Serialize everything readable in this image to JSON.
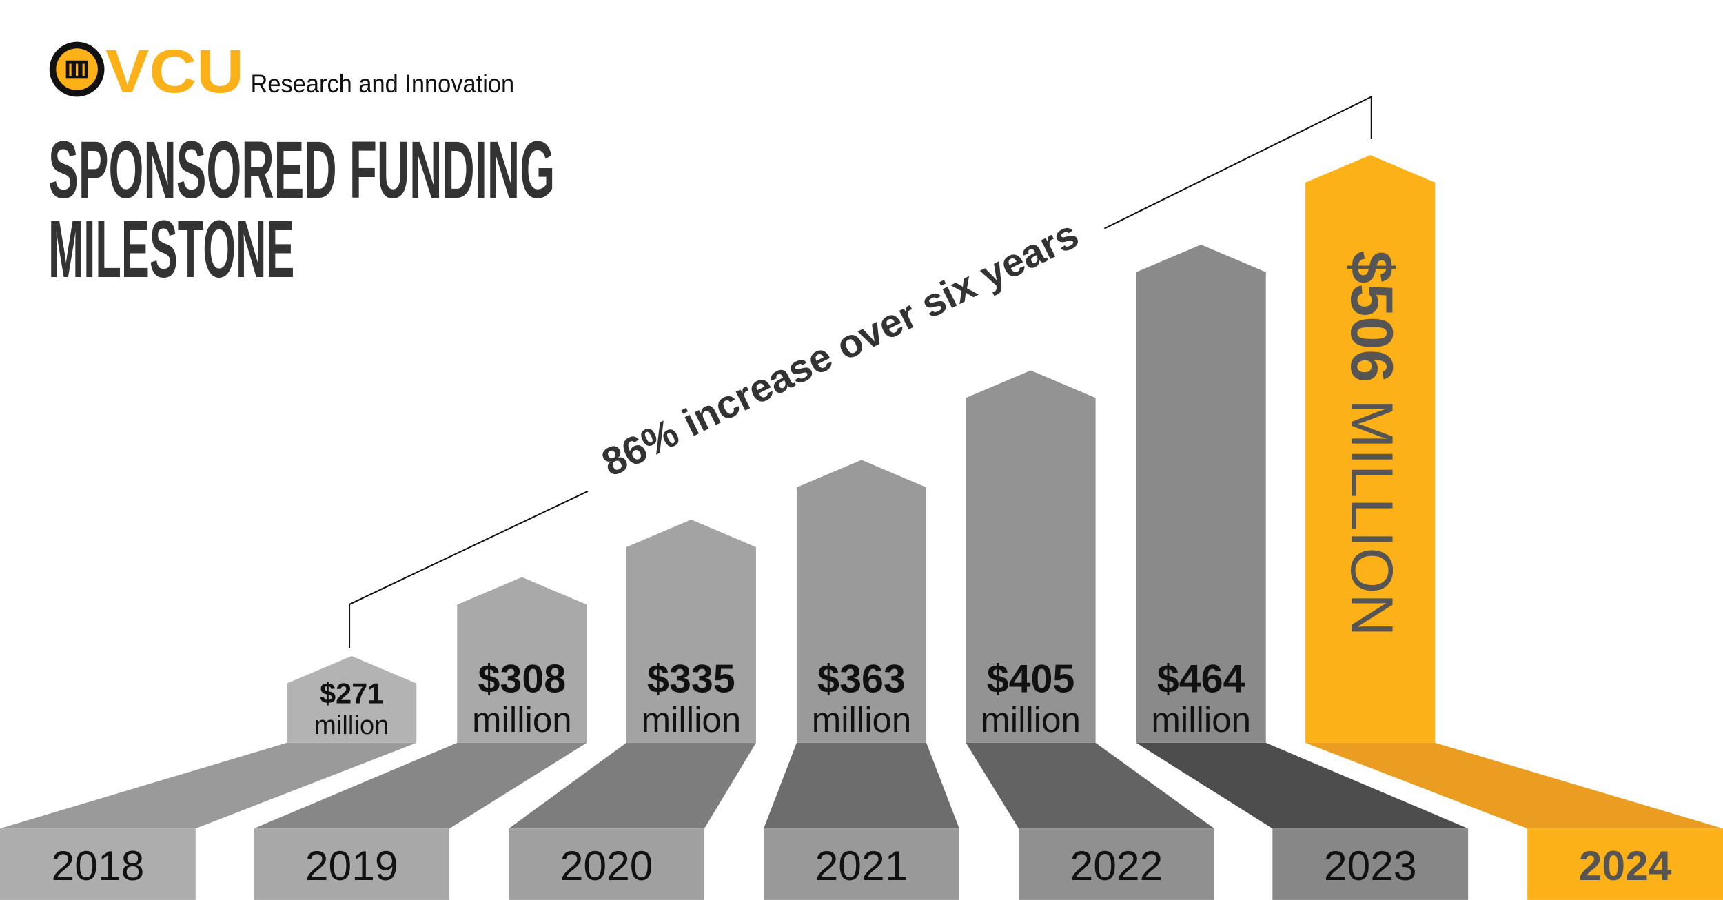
{
  "header": {
    "logo_text": "VCU",
    "seal_text": "VIRGINIA COMMONWEALTH UNIVERSITY MCV RPI 1838",
    "subtitle": "Research and Innovation",
    "title_line1": "SPONSORED FUNDING",
    "title_line2": "MILESTONE"
  },
  "annotation": "86% increase over six years",
  "colors": {
    "accent": "#fbb117",
    "accent_dark": "#eb9d22",
    "text_dark": "#333333"
  },
  "chart_data": {
    "type": "bar",
    "unit": "million",
    "categories": [
      "2018",
      "2019",
      "2020",
      "2021",
      "2022",
      "2023",
      "2024"
    ],
    "values": [
      271,
      308,
      335,
      363,
      405,
      464,
      506
    ],
    "value_labels": [
      "$271",
      "$308",
      "$335",
      "$363",
      "$405",
      "$464",
      "$506"
    ],
    "unit_labels": [
      "million",
      "million",
      "million",
      "million",
      "million",
      "million",
      "MILLION"
    ],
    "highlight_label": "$506 MILLION",
    "highlight_category": "2024"
  }
}
